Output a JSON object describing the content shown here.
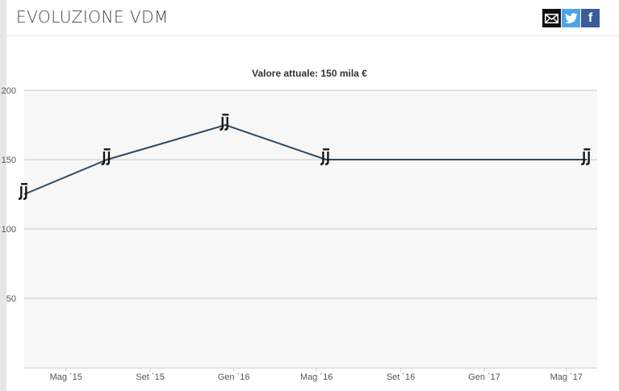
{
  "header": {
    "title": "EVOLUZIONE VDM",
    "share_icons": [
      "email-icon",
      "twitter-icon",
      "facebook-icon"
    ],
    "facebook_glyph": "f"
  },
  "colors": {
    "line": "#2d4a63",
    "plot_bg": "#f7f7f7",
    "grid": "#c8c8c8",
    "twitter": "#4ea4e8",
    "facebook": "#3b5b9a",
    "email": "#111111"
  },
  "chart_data": {
    "type": "line",
    "title": "Valore attuale: 150 mila €",
    "xlabel": "",
    "ylabel": "",
    "ylim": [
      0,
      200
    ],
    "y_ticks": [
      "50",
      "100",
      "150",
      "200"
    ],
    "x_ticks": [
      "Mag ´15",
      "Set ´15",
      "Gen ´16",
      "Mag ´16",
      "Set ´16",
      "Gen ´17",
      "Mag ´17"
    ],
    "x_tick_dates": [
      "2015-05-01",
      "2015-09-01",
      "2016-01-01",
      "2016-05-01",
      "2016-09-01",
      "2017-01-01",
      "2017-05-01"
    ],
    "x_range": [
      "2015-03-01",
      "2017-06-15"
    ],
    "marker_icon": "club-crest-icon",
    "grid": true,
    "legend": "none",
    "points": [
      {
        "x": "2015-03-01",
        "y": 125
      },
      {
        "x": "2015-06-30",
        "y": 150
      },
      {
        "x": "2015-12-20",
        "y": 175
      },
      {
        "x": "2016-05-15",
        "y": 150
      },
      {
        "x": "2017-05-31",
        "y": 150
      }
    ]
  }
}
